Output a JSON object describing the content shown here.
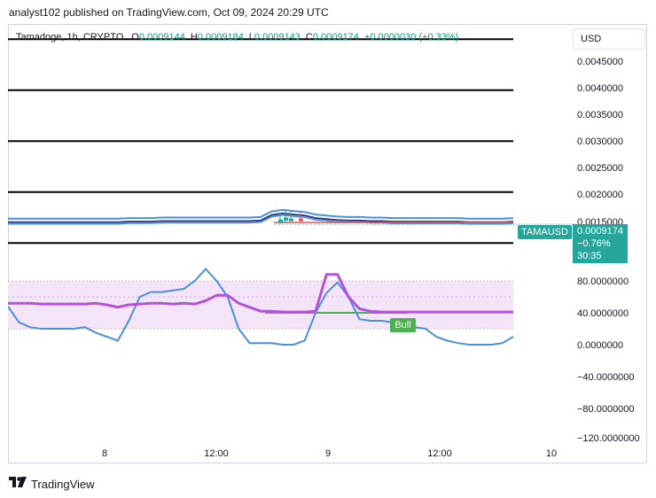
{
  "caption": "analyst102 published on TradingView.com, Oct 09, 2024 20:29 UTC",
  "symbol": {
    "name": "Tamadoge, 1h, CRYPTO",
    "open_key": "O",
    "open": "0.0009144",
    "high_key": "H",
    "high": "0.0009184",
    "low_key": "L",
    "low": "0.0009143",
    "close_key": "C",
    "close": "0.0009174",
    "change": "+0.0000030 (+0.33%)"
  },
  "currency_button": "USD",
  "price_axis": [
    "0.0045000",
    "0.0040000",
    "0.0035000",
    "0.0030000",
    "0.0025000",
    "0.0020000",
    "0.0015000"
  ],
  "osc_axis": [
    "80.0000000",
    "40.0000000",
    "0.0000000",
    "−40.0000000",
    "−80.0000000",
    "−120.0000000"
  ],
  "time_axis": [
    "8",
    "12:00",
    "9",
    "12:00",
    "10"
  ],
  "ticker_label": "TAMAUSD",
  "last_price": {
    "price": "0.0009174",
    "change": "−0.76%",
    "countdown": "30:35"
  },
  "signal_tag": "Bull",
  "footer_brand": "TradingView",
  "colors": {
    "up": "#26a69a",
    "down": "#ef5350",
    "stoch_k": "#4a90d9",
    "rsi": "#b452d9",
    "signal_line": "#4caf50",
    "band": "#f3e4f7",
    "horizontal_levels": "#000000"
  },
  "icons": [
    "tradingview-logo-icon"
  ],
  "chart_data": {
    "type": "line",
    "panes": [
      {
        "name": "price",
        "ylim": [
          0.0,
          0.0048
        ],
        "horizontal_levels": [
          0.0045,
          0.0035,
          0.0025,
          0.0015,
          0.0005
        ],
        "series": [
          {
            "values": [
              0.00091,
              0.00091,
              0.00091,
              0.00091,
              0.00091,
              0.00091,
              0.00091,
              0.00091,
              0.00091,
              0.00091,
              0.00091,
              0.00092,
              0.00092,
              0.00092,
              0.00093,
              0.00093,
              0.00093,
              0.00093,
              0.00093,
              0.00093,
              0.00093,
              0.00093,
              0.00093,
              0.00094,
              0.00105,
              0.00108,
              0.00106,
              0.00104,
              0.00099,
              0.00097,
              0.00095,
              0.00094,
              0.00094,
              0.00093,
              0.00093,
              0.00092,
              0.00092,
              0.00092,
              0.00092,
              0.00092,
              0.00092,
              0.00092,
              0.00091,
              0.00091,
              0.00091,
              0.00091,
              0.00092
            ]
          }
        ]
      },
      {
        "name": "oscillator",
        "ylim": [
          -125,
          105
        ],
        "band": [
          20,
          80
        ],
        "reference_level": 40,
        "series": [
          {
            "values": [
              48,
              28,
              22,
              20,
              20,
              20,
              20,
              22,
              15,
              10,
              5,
              30,
              60,
              66,
              66,
              68,
              70,
              80,
              95,
              80,
              60,
              20,
              2,
              2,
              2,
              0,
              0,
              5,
              40,
              65,
              78,
              60,
              32,
              30,
              30,
              28,
              26,
              22,
              20,
              10,
              5,
              2,
              0,
              0,
              0,
              2,
              10
            ]
          },
          {
            "values": [
              52,
              52,
              52,
              51,
              51,
              51,
              51,
              51,
              52,
              50,
              47,
              50,
              51,
              52,
              52,
              51,
              52,
              51,
              55,
              62,
              62,
              52,
              47,
              42,
              42,
              41,
              41,
              41,
              42,
              88,
              88,
              60,
              45,
              42,
              41,
              41,
              41,
              41,
              41,
              41,
              41,
              41,
              41,
              41,
              41,
              41,
              41
            ]
          }
        ]
      }
    ],
    "x_ticks": [
      "8",
      "12:00",
      "9",
      "12:00",
      "10"
    ]
  }
}
